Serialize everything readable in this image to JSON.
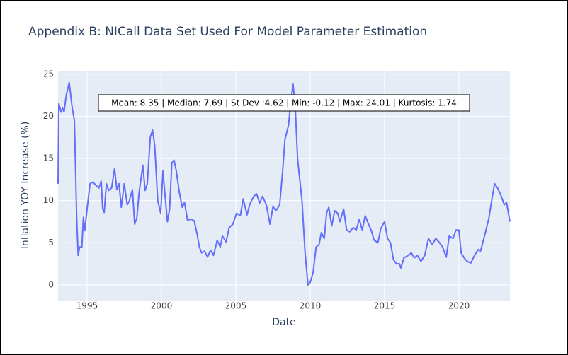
{
  "chart_data": {
    "type": "line",
    "title": "Appendix B: NICall Data Set Used For Model Parameter Estimation",
    "x_label": "Date",
    "y_label": "Inflation YOY Increase (%)",
    "annotation": "Mean: 8.35 | Median: 7.69 | St Dev :4.62 | Min: -0.12 | Max: 24.01 | Kurtosis: 1.74",
    "grid": true,
    "xlim": [
      1993.05,
      2023.43
    ],
    "ylim": [
      -1.85,
      25.4
    ],
    "xticks": [
      1995,
      2000,
      2005,
      2010,
      2015,
      2020
    ],
    "yticks": [
      0,
      5,
      10,
      15,
      20,
      25
    ],
    "series": [
      {
        "color": "#636efa",
        "x": [
          1993.05,
          1993.1,
          1993.25,
          1993.35,
          1993.45,
          1993.6,
          1993.8,
          1994.0,
          1994.15,
          1994.3,
          1994.4,
          1994.5,
          1994.65,
          1994.75,
          1994.85,
          1995.0,
          1995.2,
          1995.4,
          1995.6,
          1995.8,
          1995.95,
          1996.05,
          1996.15,
          1996.3,
          1996.45,
          1996.65,
          1996.85,
          1997.0,
          1997.15,
          1997.3,
          1997.5,
          1997.7,
          1997.85,
          1998.05,
          1998.2,
          1998.35,
          1998.5,
          1998.75,
          1998.9,
          1999.05,
          1999.25,
          1999.4,
          1999.55,
          1999.75,
          1999.95,
          2000.1,
          2000.25,
          2000.4,
          2000.55,
          2000.7,
          2000.85,
          2001.0,
          2001.2,
          2001.4,
          2001.55,
          2001.75,
          2002.0,
          2002.2,
          2002.4,
          2002.55,
          2002.7,
          2002.9,
          2003.1,
          2003.3,
          2003.5,
          2003.75,
          2003.95,
          2004.1,
          2004.35,
          2004.55,
          2004.8,
          2005.05,
          2005.3,
          2005.5,
          2005.75,
          2005.95,
          2006.2,
          2006.4,
          2006.6,
          2006.8,
          2007.05,
          2007.3,
          2007.5,
          2007.7,
          2007.95,
          2008.15,
          2008.3,
          2008.55,
          2008.7,
          2008.85,
          2009.0,
          2009.15,
          2009.45,
          2009.65,
          2009.85,
          2010.0,
          2010.2,
          2010.4,
          2010.6,
          2010.75,
          2010.95,
          2011.1,
          2011.25,
          2011.45,
          2011.65,
          2011.85,
          2012.0,
          2012.25,
          2012.45,
          2012.65,
          2012.9,
          2013.1,
          2013.3,
          2013.5,
          2013.7,
          2013.9,
          2014.1,
          2014.3,
          2014.55,
          2014.75,
          2015.0,
          2015.2,
          2015.4,
          2015.6,
          2015.8,
          2016.0,
          2016.1,
          2016.3,
          2016.6,
          2016.8,
          2017.0,
          2017.2,
          2017.45,
          2017.7,
          2017.95,
          2018.2,
          2018.45,
          2018.7,
          2018.9,
          2019.15,
          2019.35,
          2019.6,
          2019.8,
          2020.0,
          2020.15,
          2020.35,
          2020.55,
          2020.8,
          2021.05,
          2021.3,
          2021.45,
          2021.75,
          2022.0,
          2022.25,
          2022.4,
          2022.6,
          2022.85,
          2023.05,
          2023.2,
          2023.43
        ],
        "values": [
          12,
          21.5,
          20.5,
          21,
          20.5,
          22.5,
          24,
          21,
          19.5,
          8,
          3.5,
          4.5,
          4.5,
          8,
          6.5,
          9,
          12,
          12.2,
          11.8,
          11.5,
          12.3,
          9,
          8.6,
          12,
          11.2,
          11.5,
          13.8,
          11.3,
          12,
          9.2,
          12,
          9.5,
          10,
          11.3,
          7.2,
          8,
          11,
          14.2,
          11.2,
          12,
          17.5,
          18.4,
          16.5,
          10,
          8.5,
          13.5,
          10.5,
          7.5,
          9,
          14.5,
          14.8,
          13.5,
          11,
          9.2,
          9.8,
          7.7,
          7.8,
          7.6,
          6,
          4.5,
          3.8,
          4,
          3.3,
          4.1,
          3.5,
          5.3,
          4.5,
          5.8,
          5.1,
          6.8,
          7.2,
          8.5,
          8.2,
          10.2,
          8.3,
          9.6,
          10.5,
          10.8,
          9.7,
          10.5,
          9.5,
          7.2,
          9.3,
          8.8,
          9.5,
          13.5,
          17.2,
          19,
          21.8,
          23.8,
          21,
          15,
          10,
          4,
          0,
          0.3,
          1.5,
          4.5,
          4.8,
          6.2,
          5.5,
          8.5,
          9.2,
          7,
          8.8,
          8.5,
          7.5,
          9,
          6.5,
          6.3,
          6.8,
          6.5,
          7.8,
          6.5,
          8.2,
          7.3,
          6.5,
          5.3,
          5,
          6.7,
          7.5,
          5.5,
          5,
          3,
          2.5,
          2.5,
          2,
          3.2,
          3.5,
          3.8,
          3.2,
          3.5,
          2.8,
          3.5,
          5.5,
          4.8,
          5.5,
          5,
          4.5,
          3.3,
          5.8,
          5.5,
          6.5,
          6.5,
          3.8,
          3.2,
          2.8,
          2.6,
          3.5,
          4.2,
          4,
          6,
          7.8,
          10.5,
          12,
          11.5,
          10.5,
          9.5,
          9.8,
          7.5
        ]
      }
    ]
  }
}
